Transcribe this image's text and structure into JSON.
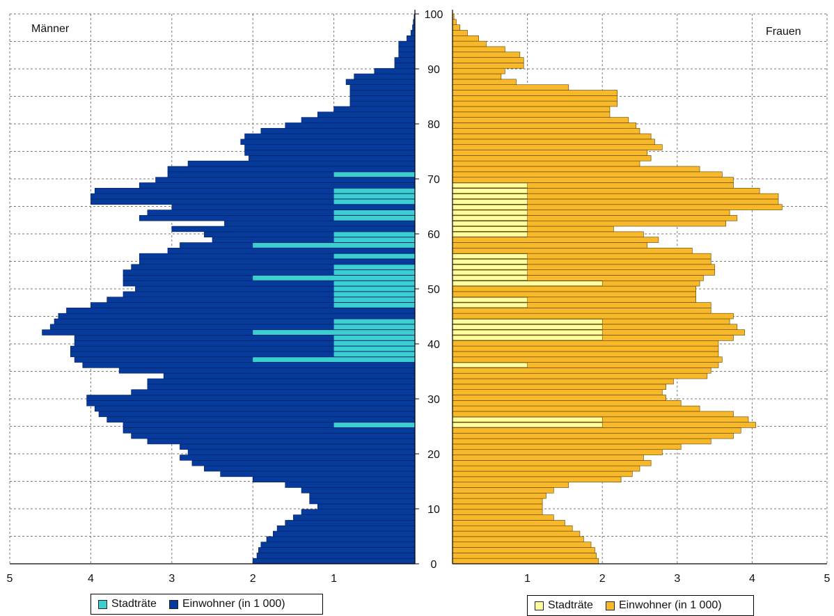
{
  "chart_data": [
    {
      "type": "bar",
      "orientation": "horizontal",
      "title": "Männer",
      "side": "left",
      "age_range": [
        0,
        100
      ],
      "xlim": [
        5,
        0
      ],
      "x_ticks": [
        "5",
        "4",
        "3",
        "2",
        "1",
        ""
      ],
      "grid": true,
      "legend_position": "bottom",
      "legend": [
        "Stadträte",
        "Einwohner (in 1 000)"
      ],
      "series": [
        {
          "name": "Einwohner (in 1 000)",
          "color": "#073b9b",
          "values": [
            2.0,
            1.95,
            1.93,
            1.9,
            1.83,
            1.75,
            1.7,
            1.6,
            1.5,
            1.4,
            1.2,
            1.3,
            1.3,
            1.4,
            1.6,
            2.0,
            2.4,
            2.6,
            2.75,
            2.9,
            2.8,
            2.9,
            3.3,
            3.5,
            3.6,
            3.6,
            3.8,
            3.9,
            3.95,
            4.05,
            4.05,
            3.5,
            3.3,
            3.3,
            3.1,
            3.65,
            4.1,
            4.2,
            4.25,
            4.25,
            4.2,
            4.2,
            4.6,
            4.5,
            4.45,
            4.4,
            4.3,
            4.0,
            3.8,
            3.6,
            3.45,
            3.6,
            3.6,
            3.6,
            3.5,
            3.4,
            3.4,
            3.05,
            2.9,
            2.5,
            2.6,
            3.0,
            2.35,
            3.4,
            3.3,
            3.0,
            4.0,
            4.0,
            3.95,
            3.4,
            3.2,
            3.05,
            3.05,
            2.8,
            2.05,
            2.1,
            2.1,
            2.15,
            2.1,
            1.9,
            1.6,
            1.4,
            1.2,
            1.0,
            0.8,
            0.8,
            0.8,
            0.8,
            0.85,
            0.75,
            0.5,
            0.25,
            0.25,
            0.2,
            0.2,
            0.2,
            0.1,
            0.05,
            0.03,
            0.02,
            0.01
          ]
        },
        {
          "name": "Stadträte",
          "color": "#3ccfcf",
          "values": [
            0,
            0,
            0,
            0,
            0,
            0,
            0,
            0,
            0,
            0,
            0,
            0,
            0,
            0,
            0,
            0,
            0,
            0,
            0,
            0,
            0,
            0,
            0,
            0,
            0,
            1,
            0,
            0,
            0,
            0,
            0,
            0,
            0,
            0,
            0,
            0,
            0,
            2,
            1,
            1,
            1,
            1,
            2,
            1,
            1,
            0,
            0,
            1,
            1,
            1,
            1,
            1,
            2,
            1,
            1,
            0,
            1,
            0,
            2,
            1,
            1,
            0,
            0,
            1,
            1,
            0,
            1,
            1,
            1,
            0,
            0,
            1,
            0,
            0,
            0,
            0,
            0,
            0,
            0,
            0,
            0,
            0,
            0,
            0,
            0,
            0,
            0,
            0,
            0,
            0,
            0,
            0,
            0,
            0,
            0,
            0,
            0,
            0,
            0,
            0,
            0
          ]
        }
      ]
    },
    {
      "type": "bar",
      "orientation": "horizontal",
      "title": "Frauen",
      "side": "right",
      "age_range": [
        0,
        100
      ],
      "xlim": [
        0,
        5
      ],
      "x_ticks": [
        "",
        "1",
        "2",
        "3",
        "4",
        "5"
      ],
      "y_ticks": [
        "0",
        "10",
        "20",
        "30",
        "40",
        "50",
        "60",
        "70",
        "80",
        "90",
        "100"
      ],
      "grid": true,
      "legend_position": "bottom",
      "legend": [
        "Stadträte",
        "Einwohner (in 1 000)"
      ],
      "series": [
        {
          "name": "Einwohner (in 1 000)",
          "color": "#f7b82a",
          "values": [
            1.95,
            1.92,
            1.9,
            1.85,
            1.75,
            1.7,
            1.6,
            1.5,
            1.35,
            1.2,
            1.2,
            1.2,
            1.25,
            1.35,
            1.55,
            2.25,
            2.4,
            2.5,
            2.65,
            2.55,
            2.8,
            3.05,
            3.45,
            3.75,
            3.85,
            4.05,
            3.95,
            3.75,
            3.3,
            3.05,
            2.85,
            2.8,
            2.85,
            2.95,
            3.4,
            3.45,
            3.55,
            3.6,
            3.55,
            3.55,
            3.55,
            3.75,
            3.9,
            3.8,
            3.7,
            3.75,
            3.45,
            3.45,
            3.25,
            3.25,
            3.25,
            3.3,
            3.35,
            3.5,
            3.5,
            3.45,
            3.45,
            3.2,
            2.6,
            2.75,
            2.55,
            2.15,
            3.65,
            3.8,
            3.7,
            4.4,
            4.35,
            4.35,
            4.1,
            3.75,
            3.75,
            3.6,
            3.3,
            2.5,
            2.65,
            2.6,
            2.8,
            2.7,
            2.65,
            2.5,
            2.45,
            2.35,
            2.1,
            2.1,
            2.2,
            2.2,
            2.2,
            1.55,
            0.85,
            0.65,
            0.7,
            0.95,
            0.95,
            0.9,
            0.7,
            0.45,
            0.35,
            0.2,
            0.1,
            0.05,
            0.02
          ]
        },
        {
          "name": "Stadträte",
          "color": "#ffff9f",
          "values": [
            0,
            0,
            0,
            0,
            0,
            0,
            0,
            0,
            0,
            0,
            0,
            0,
            0,
            0,
            0,
            0,
            0,
            0,
            0,
            0,
            0,
            0,
            0,
            0,
            0,
            2,
            2,
            0,
            0,
            0,
            0,
            0,
            0,
            0,
            0,
            0,
            1,
            0,
            0,
            0,
            0,
            2,
            2,
            2,
            2,
            0,
            0,
            1,
            1,
            0,
            0,
            2,
            1,
            1,
            1,
            1,
            1,
            0,
            0,
            0,
            1,
            1,
            1,
            1,
            1,
            1,
            1,
            1,
            1,
            1,
            0,
            0,
            0,
            0,
            0,
            0,
            0,
            0,
            0,
            0,
            0,
            0,
            0,
            0,
            0,
            0,
            0,
            0,
            0,
            0,
            0,
            0,
            0,
            0,
            0,
            0,
            0,
            0,
            0,
            0,
            0
          ]
        }
      ]
    }
  ],
  "legend_left": {
    "stadtraete_label": "Stadträte",
    "einwohner_label": "Einwohner (in 1 000)",
    "stadtraete_color": "#3ccfcf",
    "einwohner_color": "#073b9b"
  },
  "legend_right": {
    "stadtraete_label": "Stadträte",
    "einwohner_label": "Einwohner (in 1 000)",
    "stadtraete_color": "#ffff9f",
    "einwohner_color": "#f7b82a"
  }
}
